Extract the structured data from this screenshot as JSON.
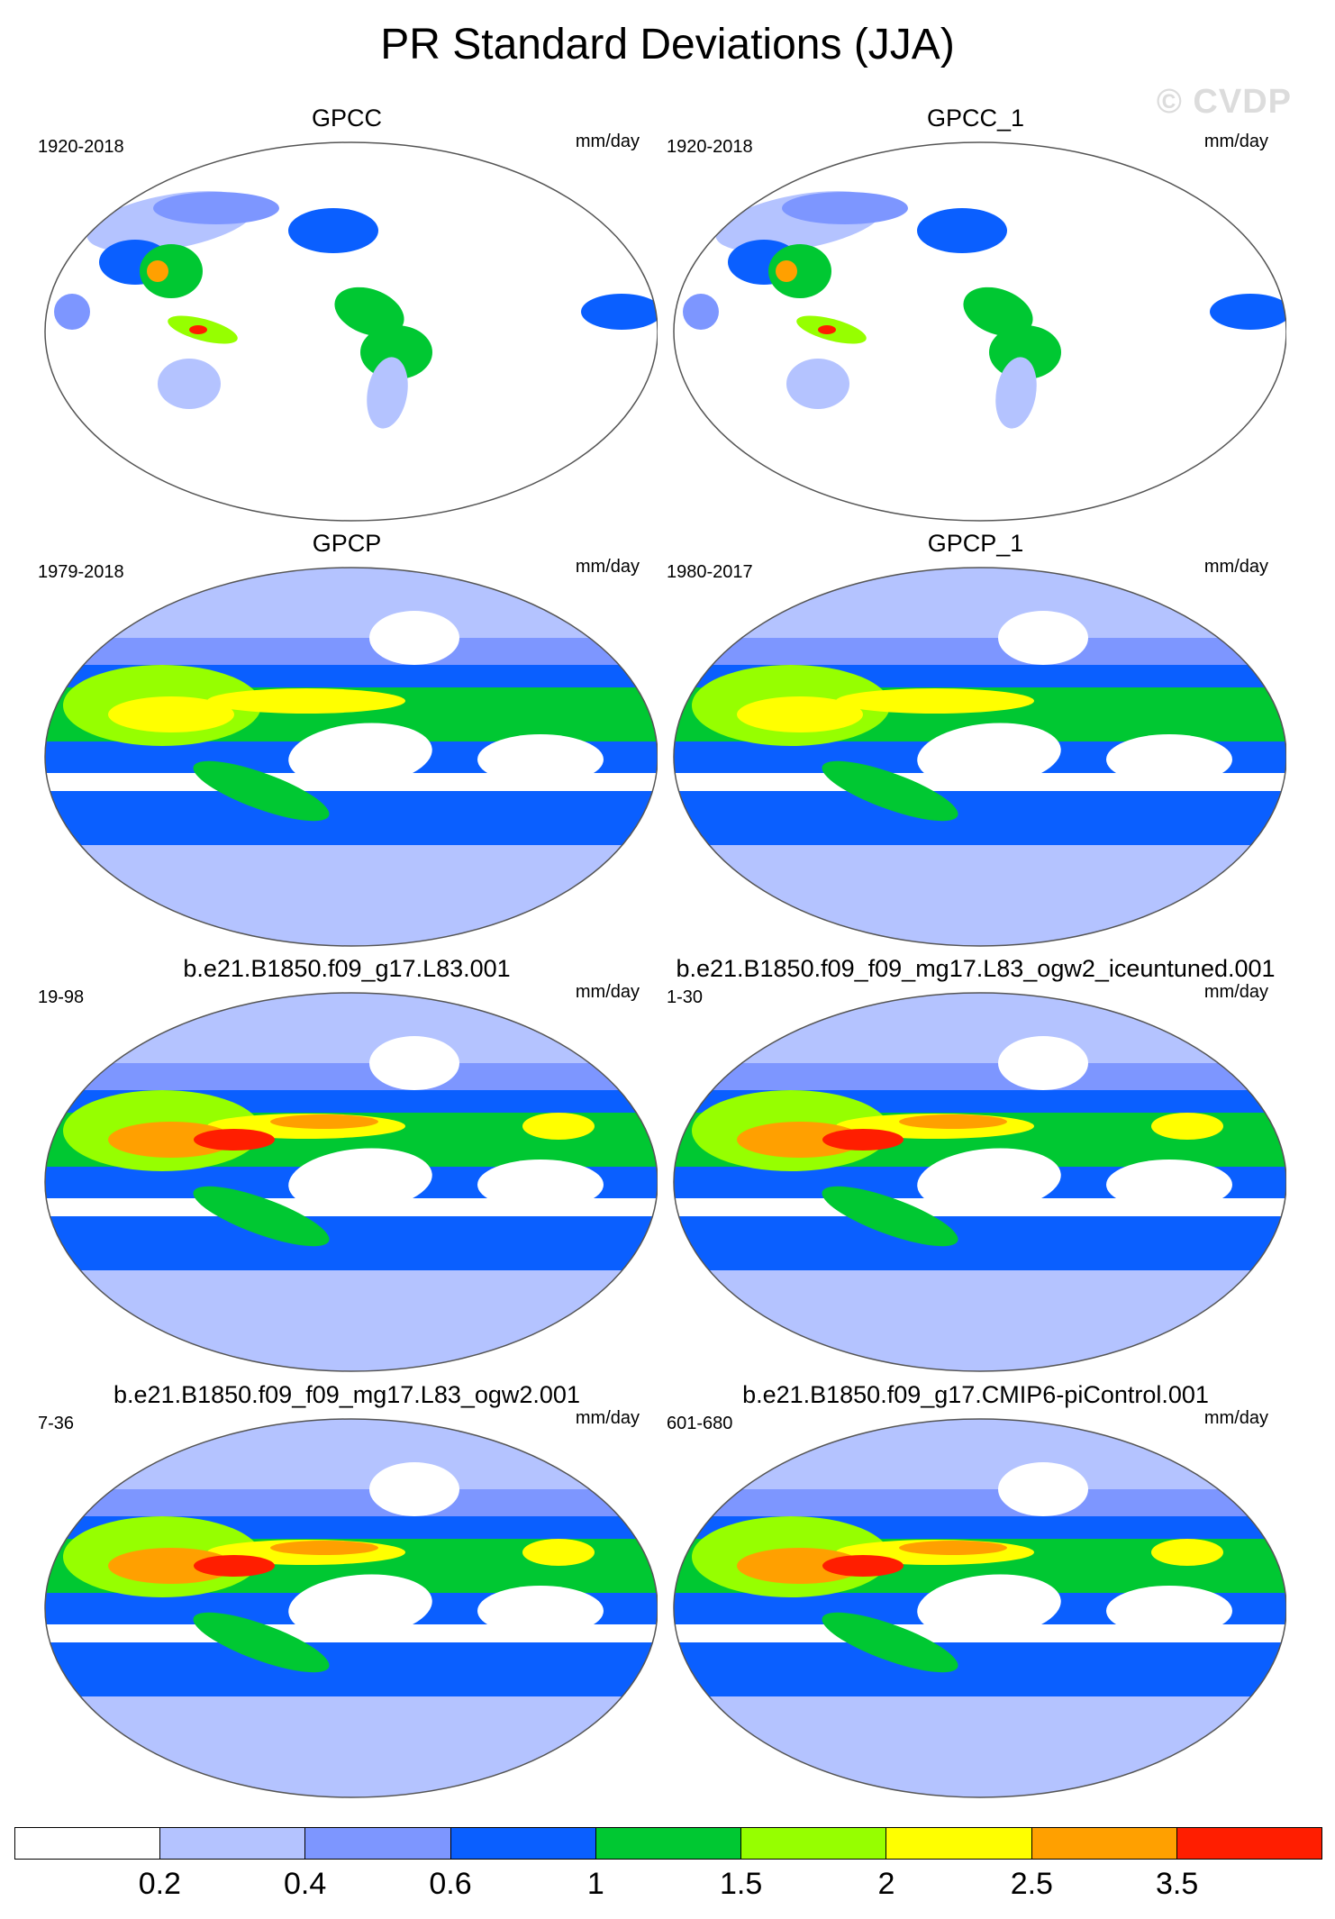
{
  "figure": {
    "title": "PR Standard Deviations (JJA)",
    "watermark": "© CVDP"
  },
  "panels": [
    {
      "title": "GPCC",
      "period": "1920-2018",
      "units": "mm/day",
      "field": "land-only"
    },
    {
      "title": "GPCC_1",
      "period": "1920-2018",
      "units": "mm/day",
      "field": "land-only"
    },
    {
      "title": "GPCP",
      "period": "1979-2018",
      "units": "mm/day",
      "field": "global-obs"
    },
    {
      "title": "GPCP_1",
      "period": "1980-2017",
      "units": "mm/day",
      "field": "global-obs"
    },
    {
      "title": "b.e21.B1850.f09_g17.L83.001",
      "period": "19-98",
      "units": "mm/day",
      "field": "global-model"
    },
    {
      "title": "b.e21.B1850.f09_f09_mg17.L83_ogw2_iceuntuned.001",
      "period": "1-30",
      "units": "mm/day",
      "field": "global-model"
    },
    {
      "title": "b.e21.B1850.f09_f09_mg17.L83_ogw2.001",
      "period": "7-36",
      "units": "mm/day",
      "field": "global-model"
    },
    {
      "title": "b.e21.B1850.f09_g17.CMIP6-piControl.001",
      "period": "601-680",
      "units": "mm/day",
      "field": "global-model"
    }
  ],
  "colorbar": {
    "colors": [
      "#ffffff",
      "#b4c3ff",
      "#7d96ff",
      "#0a5fff",
      "#00c832",
      "#96ff00",
      "#ffff00",
      "#ffa000",
      "#ff1e00"
    ],
    "labels": [
      "0.2",
      "0.4",
      "0.6",
      "1",
      "1.5",
      "2",
      "2.5",
      "3.5"
    ]
  }
}
